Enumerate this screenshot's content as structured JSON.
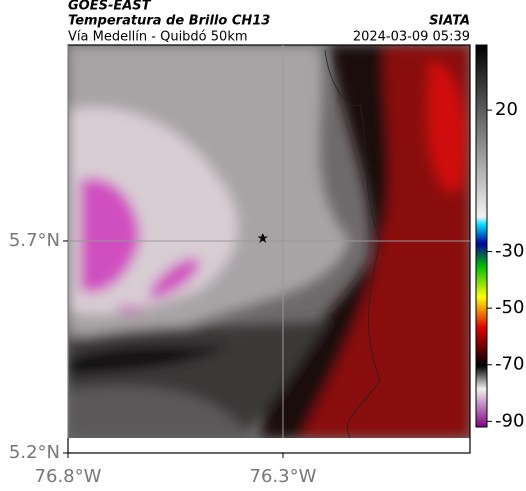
{
  "header": {
    "source": "GOES-EAST",
    "product": "Temperatura de Brillo CH13",
    "region": "Vía Medellín - Quibdó 50km",
    "agency": "SIATA",
    "datetime": "2024-03-09 05:39"
  },
  "map": {
    "xlim": [
      -76.8,
      -75.865
    ],
    "ylim": [
      5.2,
      6.162
    ],
    "xticks": [
      {
        "value": -76.8,
        "label": "76.8°W"
      },
      {
        "value": -76.3,
        "label": "76.3°W"
      }
    ],
    "yticks": [
      {
        "value": 5.2,
        "label": "5.2°N"
      },
      {
        "value": 5.7,
        "label": "5.7°N"
      }
    ],
    "grid": true,
    "marker": {
      "lon": -76.347,
      "lat": 5.707
    }
  },
  "colorbar": {
    "lim": [
      -92,
      43
    ],
    "ticks": [
      20,
      -30,
      -50,
      -70,
      -90
    ]
  }
}
